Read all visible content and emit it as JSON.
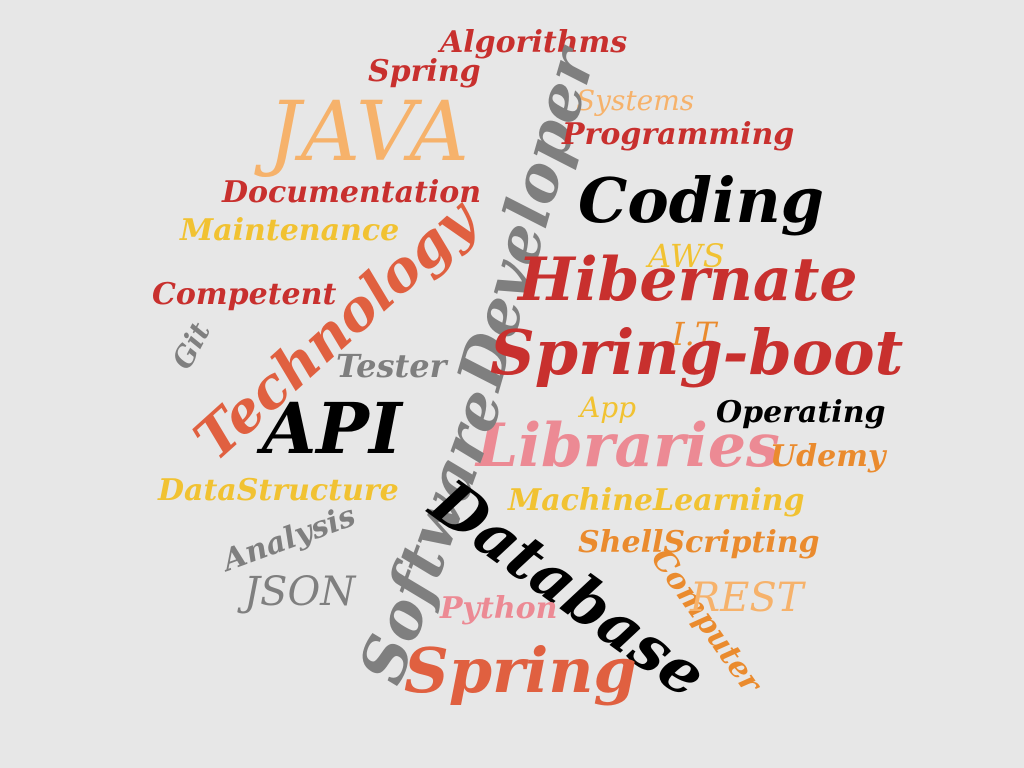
{
  "palette": {
    "background": "#e7e7e7",
    "red": "#c8302e",
    "peach": "#f6b26b",
    "gold": "#f1c232",
    "orange": "#ea8b2e",
    "coral": "#e06040",
    "pink": "#ec8a94",
    "gray": "#7f7f7f",
    "black": "#000000"
  },
  "words": {
    "algorithms": "Algorithms",
    "spring_small": "Spring",
    "java": "JAVA",
    "systems": "Systems",
    "developer": "Developer",
    "programming": "Programming",
    "documentation": "Documentation",
    "coding": "Coding",
    "maintenance": "Maintenance",
    "aws": "AWS",
    "hibernate": "Hibernate",
    "competent": "Competent",
    "technology": "Technology",
    "it": "I.T",
    "git": "Git",
    "spring_boot": "Spring-boot",
    "tester": "Tester",
    "api": "API",
    "app": "App",
    "operating": "Operating",
    "libraries": "Libraries",
    "udemy": "Udemy",
    "datastructure": "DataStructure",
    "machinelearning": "MachineLearning",
    "software": "Software",
    "analysis": "Analysis",
    "database": "Database",
    "shellscripting": "ShellScripting",
    "json": "JSON",
    "computer": "Computer",
    "rest": "REST",
    "python": "Python",
    "spring_large": "Spring"
  }
}
